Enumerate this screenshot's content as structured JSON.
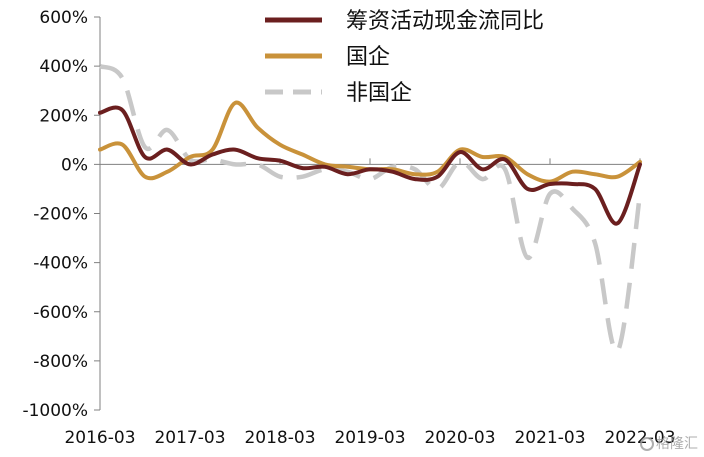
{
  "chart_data": {
    "type": "line",
    "title": "",
    "xlabel": "",
    "ylabel": "",
    "ylim": [
      -1000,
      600
    ],
    "y_ticks": [
      600,
      400,
      200,
      0,
      -200,
      -400,
      -600,
      -800,
      -1000
    ],
    "y_tick_labels": [
      "600%",
      "400%",
      "200%",
      "0%",
      "-200%",
      "-400%",
      "-600%",
      "-800%",
      "-1000%"
    ],
    "x_tick_labels": [
      "2016-03",
      "2017-03",
      "2018-03",
      "2019-03",
      "2020-03",
      "2021-03",
      "2022-03"
    ],
    "x": [
      "2016-03",
      "2016-06",
      "2016-09",
      "2016-12",
      "2017-03",
      "2017-06",
      "2017-09",
      "2017-12",
      "2018-03",
      "2018-06",
      "2018-09",
      "2018-12",
      "2019-03",
      "2019-06",
      "2019-09",
      "2019-12",
      "2020-03",
      "2020-06",
      "2020-09",
      "2020-12",
      "2021-03",
      "2021-06",
      "2021-09",
      "2021-12",
      "2022-03"
    ],
    "grid": false,
    "legend_position": "top-right",
    "series": [
      {
        "name": "筹资活动现金流同比",
        "color": "#6b1f1f",
        "dash": "solid",
        "values": [
          210,
          220,
          30,
          60,
          0,
          40,
          60,
          25,
          15,
          -15,
          -10,
          -40,
          -20,
          -30,
          -60,
          -50,
          50,
          -20,
          20,
          -100,
          -80,
          -80,
          -100,
          -240,
          0
        ]
      },
      {
        "name": "国企",
        "color": "#c9923a",
        "dash": "solid",
        "values": [
          60,
          80,
          -50,
          -30,
          30,
          60,
          250,
          150,
          80,
          40,
          0,
          -10,
          -20,
          -20,
          -40,
          -30,
          60,
          30,
          30,
          -40,
          -70,
          -30,
          -40,
          -50,
          10
        ]
      },
      {
        "name": "非国企",
        "color": "#c8c8c8",
        "dash": "dashed",
        "values": [
          400,
          350,
          70,
          140,
          20,
          20,
          0,
          0,
          -50,
          -50,
          -20,
          -30,
          -60,
          -10,
          -20,
          -100,
          10,
          -60,
          -20,
          -380,
          -120,
          -180,
          -320,
          -760,
          -120
        ]
      }
    ]
  },
  "watermark": {
    "text": "格隆汇"
  }
}
